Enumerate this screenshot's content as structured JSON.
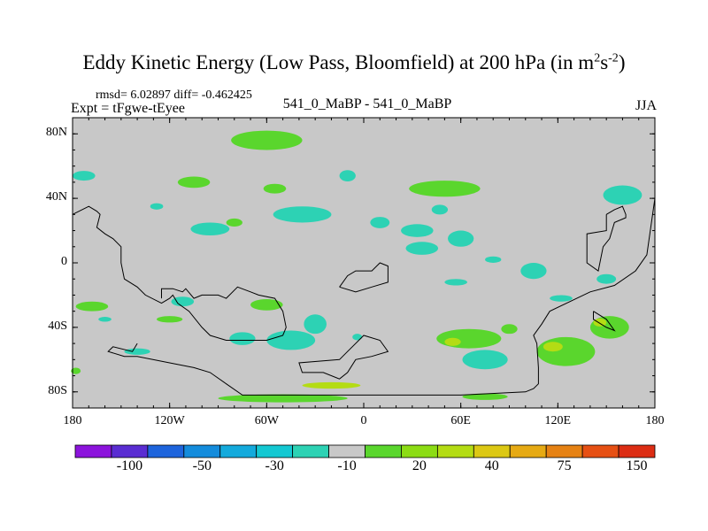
{
  "title": {
    "prefix": "Eddy Kinetic Energy (Low Pass, Bloomfield) at 200 hPa (in m",
    "exp1": "2",
    "mid": "s",
    "exp2": "-2",
    "suffix": ")"
  },
  "stats": "rmsd= 6.02897 diff= -0.462425",
  "expt_label": "Expt = tFgwe-tEyee",
  "center_label": "541_0_MaBP - 541_0_MaBP",
  "season": "JJA",
  "map": {
    "lon_range": [
      -180,
      180
    ],
    "lat_range": [
      -90,
      90
    ],
    "background_color": "#c8c8c8",
    "lat_ticks": [
      {
        "value": 80,
        "label": "80N"
      },
      {
        "value": 40,
        "label": "40N"
      },
      {
        "value": 0,
        "label": "0"
      },
      {
        "value": -40,
        "label": "40S"
      },
      {
        "value": -80,
        "label": "80S"
      }
    ],
    "lon_ticks": [
      {
        "value": -180,
        "label": "180"
      },
      {
        "value": -120,
        "label": "120W"
      },
      {
        "value": -60,
        "label": "60W"
      },
      {
        "value": 0,
        "label": "0"
      },
      {
        "value": 60,
        "label": "60E"
      },
      {
        "value": 120,
        "label": "120E"
      },
      {
        "value": 180,
        "label": "180"
      }
    ],
    "anomaly_patches": [
      {
        "lon": -60,
        "lat": 76,
        "rx": 22,
        "ry": 6,
        "color": "#5ad62d"
      },
      {
        "lon": -173,
        "lat": 54,
        "rx": 7,
        "ry": 3,
        "color": "#2dd2b4"
      },
      {
        "lon": -105,
        "lat": 50,
        "rx": 10,
        "ry": 3.5,
        "color": "#5ad62d"
      },
      {
        "lon": -55,
        "lat": 46,
        "rx": 7,
        "ry": 3,
        "color": "#5ad62d"
      },
      {
        "lon": -10,
        "lat": 54,
        "rx": 5,
        "ry": 3.5,
        "color": "#2dd2b4"
      },
      {
        "lon": 50,
        "lat": 46,
        "rx": 22,
        "ry": 5,
        "color": "#5ad62d"
      },
      {
        "lon": 160,
        "lat": 42,
        "rx": 12,
        "ry": 6,
        "color": "#2dd2b4"
      },
      {
        "lon": -95,
        "lat": 21,
        "rx": 12,
        "ry": 4,
        "color": "#2dd2b4"
      },
      {
        "lon": -38,
        "lat": 30,
        "rx": 18,
        "ry": 5,
        "color": "#2dd2b4"
      },
      {
        "lon": -80,
        "lat": 25,
        "rx": 5,
        "ry": 2.5,
        "color": "#5ad62d"
      },
      {
        "lon": -128,
        "lat": 35,
        "rx": 4,
        "ry": 2,
        "color": "#2dd2b4"
      },
      {
        "lon": 10,
        "lat": 25,
        "rx": 6,
        "ry": 3.5,
        "color": "#2dd2b4"
      },
      {
        "lon": 33,
        "lat": 20,
        "rx": 10,
        "ry": 4,
        "color": "#2dd2b4"
      },
      {
        "lon": 47,
        "lat": 33,
        "rx": 5,
        "ry": 3,
        "color": "#2dd2b4"
      },
      {
        "lon": 36,
        "lat": 9,
        "rx": 10,
        "ry": 4,
        "color": "#2dd2b4"
      },
      {
        "lon": 60,
        "lat": 15,
        "rx": 8,
        "ry": 5,
        "color": "#2dd2b4"
      },
      {
        "lon": 80,
        "lat": 2,
        "rx": 5,
        "ry": 2,
        "color": "#2dd2b4"
      },
      {
        "lon": 57,
        "lat": -12,
        "rx": 7,
        "ry": 2,
        "color": "#2dd2b4"
      },
      {
        "lon": 105,
        "lat": -5,
        "rx": 8,
        "ry": 5,
        "color": "#2dd2b4"
      },
      {
        "lon": 122,
        "lat": -22,
        "rx": 7,
        "ry": 2,
        "color": "#2dd2b4"
      },
      {
        "lon": 150,
        "lat": -10,
        "rx": 6,
        "ry": 3,
        "color": "#2dd2b4"
      },
      {
        "lon": -168,
        "lat": -27,
        "rx": 10,
        "ry": 3,
        "color": "#5ad62d"
      },
      {
        "lon": -112,
        "lat": -24,
        "rx": 7,
        "ry": 3,
        "color": "#2dd2b4"
      },
      {
        "lon": -60,
        "lat": -26,
        "rx": 10,
        "ry": 3.5,
        "color": "#5ad62d"
      },
      {
        "lon": -30,
        "lat": -38,
        "rx": 7,
        "ry": 6,
        "color": "#2dd2b4"
      },
      {
        "lon": -120,
        "lat": -35,
        "rx": 8,
        "ry": 2,
        "color": "#5ad62d"
      },
      {
        "lon": -160,
        "lat": -35,
        "rx": 4,
        "ry": 1.5,
        "color": "#2dd2b4"
      },
      {
        "lon": -75,
        "lat": -47,
        "rx": 8,
        "ry": 4,
        "color": "#2dd2b4"
      },
      {
        "lon": -45,
        "lat": -48,
        "rx": 15,
        "ry": 6,
        "color": "#2dd2b4"
      },
      {
        "lon": -140,
        "lat": -55,
        "rx": 8,
        "ry": 2,
        "color": "#2dd2b4"
      },
      {
        "lon": -4,
        "lat": -46,
        "rx": 3,
        "ry": 2,
        "color": "#2dd2b4"
      },
      {
        "lon": 65,
        "lat": -47,
        "rx": 20,
        "ry": 6,
        "color": "#5ad62d"
      },
      {
        "lon": 55,
        "lat": -49,
        "rx": 5,
        "ry": 2.5,
        "color": "#b4dc14"
      },
      {
        "lon": 90,
        "lat": -41,
        "rx": 5,
        "ry": 3,
        "color": "#5ad62d"
      },
      {
        "lon": 75,
        "lat": -60,
        "rx": 14,
        "ry": 6,
        "color": "#2dd2b4"
      },
      {
        "lon": 125,
        "lat": -55,
        "rx": 18,
        "ry": 9,
        "color": "#5ad62d"
      },
      {
        "lon": 117,
        "lat": -52,
        "rx": 6,
        "ry": 3,
        "color": "#b4dc14"
      },
      {
        "lon": 152,
        "lat": -40,
        "rx": 12,
        "ry": 7,
        "color": "#5ad62d"
      },
      {
        "lon": 146,
        "lat": -37,
        "rx": 4,
        "ry": 2.5,
        "color": "#b4dc14"
      },
      {
        "lon": -178,
        "lat": -67,
        "rx": 3,
        "ry": 2,
        "color": "#5ad62d"
      },
      {
        "lon": -20,
        "lat": -76,
        "rx": 18,
        "ry": 2,
        "color": "#b4dc14"
      },
      {
        "lon": -50,
        "lat": -84,
        "rx": 40,
        "ry": 2.5,
        "color": "#5ad62d"
      },
      {
        "lon": 75,
        "lat": -83,
        "rx": 14,
        "ry": 2,
        "color": "#5ad62d"
      }
    ],
    "coastlines": [
      [
        [
          -180,
          30
        ],
        [
          -170,
          35
        ],
        [
          -165,
          32
        ],
        [
          -163,
          30
        ],
        [
          -165,
          22
        ],
        [
          -160,
          18
        ],
        [
          -155,
          15
        ],
        [
          -150,
          10
        ],
        [
          -150,
          0
        ],
        [
          -148,
          -10
        ],
        [
          -140,
          -15
        ],
        [
          -135,
          -20
        ],
        [
          -125,
          -25
        ],
        [
          -120,
          -22
        ],
        [
          -118,
          -20
        ],
        [
          -115,
          -25
        ],
        [
          -108,
          -30
        ],
        [
          -100,
          -40
        ],
        [
          -95,
          -45
        ],
        [
          -85,
          -48
        ],
        [
          -60,
          -48
        ],
        [
          -50,
          -45
        ],
        [
          -48,
          -40
        ],
        [
          -50,
          -30
        ],
        [
          -55,
          -22
        ],
        [
          -65,
          -20
        ],
        [
          -70,
          -18
        ],
        [
          -78,
          -15
        ],
        [
          -85,
          -22
        ],
        [
          -90,
          -20
        ],
        [
          -100,
          -20
        ],
        [
          -105,
          -22
        ],
        [
          -110,
          -16
        ],
        [
          -112,
          -18
        ],
        [
          -118,
          -16
        ],
        [
          -125,
          -16
        ],
        [
          -125,
          -22
        ]
      ],
      [
        [
          -140,
          -50
        ],
        [
          -143,
          -55
        ],
        [
          -155,
          -52
        ],
        [
          -158,
          -55
        ],
        [
          -148,
          -58
        ],
        [
          -140,
          -58
        ],
        [
          -120,
          -62
        ],
        [
          -105,
          -65
        ],
        [
          -95,
          -68
        ],
        [
          -85,
          -75
        ],
        [
          -75,
          -82
        ],
        [
          0,
          -82
        ],
        [
          60,
          -82
        ],
        [
          100,
          -80
        ],
        [
          105,
          -78
        ],
        [
          108,
          -75
        ],
        [
          108,
          -65
        ],
        [
          107,
          -50
        ],
        [
          105,
          -45
        ],
        [
          110,
          -38
        ],
        [
          115,
          -30
        ],
        [
          140,
          -18
        ],
        [
          155,
          -14
        ],
        [
          168,
          -5
        ],
        [
          175,
          5
        ],
        [
          180,
          40
        ]
      ],
      [
        [
          -10,
          -55
        ],
        [
          -15,
          -60
        ],
        [
          -40,
          -62
        ],
        [
          -38,
          -68
        ],
        [
          -25,
          -68
        ],
        [
          -15,
          -72
        ],
        [
          -10,
          -68
        ],
        [
          -5,
          -60
        ],
        [
          5,
          -58
        ],
        [
          15,
          -55
        ],
        [
          10,
          -48
        ],
        [
          0,
          -45
        ],
        [
          -10,
          -55
        ]
      ],
      [
        [
          -15,
          -15
        ],
        [
          -10,
          -8
        ],
        [
          -5,
          -5
        ],
        [
          5,
          -5
        ],
        [
          10,
          0
        ],
        [
          15,
          -2
        ],
        [
          15,
          -12
        ],
        [
          5,
          -15
        ],
        [
          -5,
          -18
        ],
        [
          -15,
          -15
        ]
      ],
      [
        [
          150,
          30
        ],
        [
          150,
          20
        ],
        [
          138,
          18
        ],
        [
          138,
          0
        ],
        [
          145,
          -5
        ],
        [
          148,
          10
        ],
        [
          152,
          15
        ],
        [
          155,
          25
        ],
        [
          162,
          28
        ],
        [
          162,
          30
        ],
        [
          160,
          35
        ],
        [
          155,
          33
        ],
        [
          150,
          30
        ]
      ],
      [
        [
          142,
          -30
        ],
        [
          150,
          -35
        ],
        [
          155,
          -42
        ],
        [
          150,
          -40
        ],
        [
          142,
          -35
        ],
        [
          142,
          -30
        ]
      ]
    ]
  },
  "colorbar": {
    "colors": [
      "#8c14dc",
      "#5a2dd2",
      "#1e64dc",
      "#148cdc",
      "#14aadc",
      "#14c8d2",
      "#2dd2b4",
      "#c8c8c8",
      "#5ad62d",
      "#8cdc14",
      "#b4dc14",
      "#dcc814",
      "#e6aa14",
      "#e68214",
      "#e65014",
      "#dc2d14"
    ],
    "labels": [
      {
        "after_box": 2,
        "text": "-100"
      },
      {
        "after_box": 4,
        "text": "-50"
      },
      {
        "after_box": 6,
        "text": "-30"
      },
      {
        "after_box": 8,
        "text": "-10"
      },
      {
        "after_box": 10,
        "text": "20"
      },
      {
        "after_box": 12,
        "text": "40"
      },
      {
        "after_box": 14,
        "text": "75"
      },
      {
        "after_box": 16,
        "text": "150"
      }
    ]
  }
}
